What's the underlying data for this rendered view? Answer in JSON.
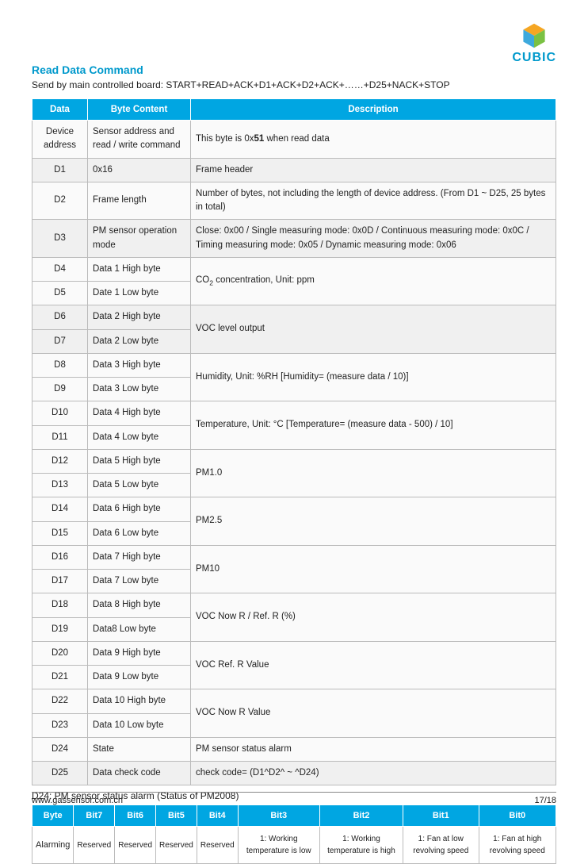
{
  "logo": {
    "text": "CUBIC"
  },
  "title": "Read Data Command",
  "subtitle": "Send by main controlled board: START+READ+ACK+D1+ACK+D2+ACK+……+D25+NACK+STOP",
  "main_table": {
    "headers": [
      "Data",
      "Byte Content",
      "Description"
    ],
    "col_widths": [
      "70px",
      "130px",
      "auto"
    ],
    "rows": [
      {
        "data": "Device address",
        "byte": "Sensor address and read / write command",
        "desc_html": "This byte is 0x<b>51</b> when read data",
        "rowspan": 1,
        "alt": false
      },
      {
        "data": "D1",
        "byte": "0x16",
        "desc": "Frame header",
        "alt": true
      },
      {
        "data": "D2",
        "byte": "Frame length",
        "desc": "Number of bytes, not including the length of device address. (From D1 ~ D25, 25 bytes in total)",
        "alt": false
      },
      {
        "data": "D3",
        "byte": "PM sensor operation mode",
        "desc": "Close: 0x00 / Single measuring mode: 0x0D / Continuous measuring mode: 0x0C / Timing measuring mode: 0x05 / Dynamic measuring mode: 0x06",
        "alt": true
      },
      {
        "data": "D4",
        "byte": "Data 1 High byte",
        "merged_desc_html": "CO<sub>2</sub> concentration, Unit: ppm",
        "merged_first": true,
        "alt": false
      },
      {
        "data": "D5",
        "byte": "Date 1 Low byte",
        "merged_first": false,
        "alt": false
      },
      {
        "data": "D6",
        "byte": "Data 2 High byte",
        "merged_desc": "VOC level output",
        "merged_first": true,
        "alt": true
      },
      {
        "data": "D7",
        "byte": "Data 2 Low byte",
        "merged_first": false,
        "alt": true
      },
      {
        "data": "D8",
        "byte": "Data 3 High byte",
        "merged_desc": "Humidity, Unit: %RH [Humidity= (measure data / 10)]",
        "merged_first": true,
        "alt": false
      },
      {
        "data": "D9",
        "byte": "Data 3 Low byte",
        "merged_first": false,
        "alt": false
      },
      {
        "data": "D10",
        "byte": "Data 4 High byte",
        "merged_desc": "Temperature, Unit: °C [Temperature= (measure data - 500) / 10]",
        "merged_first": true,
        "alt": false
      },
      {
        "data": "D11",
        "byte": "Data 4 Low byte",
        "merged_first": false,
        "alt": false
      },
      {
        "data": "D12",
        "byte": "Data 5 High byte",
        "merged_desc": "PM1.0",
        "merged_first": true,
        "alt": false
      },
      {
        "data": "D13",
        "byte": "Data 5 Low byte",
        "merged_first": false,
        "alt": false
      },
      {
        "data": "D14",
        "byte": "Data 6 High byte",
        "merged_desc": "PM2.5",
        "merged_first": true,
        "alt": false
      },
      {
        "data": "D15",
        "byte": "Data 6 Low byte",
        "merged_first": false,
        "alt": false
      },
      {
        "data": "D16",
        "byte": "Data 7 High byte",
        "merged_desc": "PM10",
        "merged_first": true,
        "alt": false
      },
      {
        "data": "D17",
        "byte": "Data 7 Low byte",
        "merged_first": false,
        "alt": false
      },
      {
        "data": "D18",
        "byte": "Data 8 High byte",
        "merged_desc": "VOC Now R / Ref. R (%)",
        "merged_first": true,
        "alt": false
      },
      {
        "data": "D19",
        "byte": "Data8 Low byte",
        "merged_first": false,
        "alt": false
      },
      {
        "data": "D20",
        "byte": "Data 9 High byte",
        "merged_desc": "VOC Ref. R Value",
        "merged_first": true,
        "alt": false
      },
      {
        "data": "D21",
        "byte": "Data 9 Low byte",
        "merged_first": false,
        "alt": false
      },
      {
        "data": "D22",
        "byte": "Data 10 High byte",
        "merged_desc": "VOC Now R Value",
        "merged_first": true,
        "alt": false
      },
      {
        "data": "D23",
        "byte": "Data 10 Low byte",
        "merged_first": false,
        "alt": false
      },
      {
        "data": "D24",
        "byte": "State",
        "desc": "PM sensor status alarm",
        "alt": false
      },
      {
        "data": "D25",
        "byte": "Data check code",
        "desc": "check code= (D1^D2^ ~ ^D24)",
        "alt": true
      }
    ]
  },
  "caption": "D24: PM sensor status alarm (Status of PM2008)",
  "bits_table": {
    "headers": [
      "Byte",
      "Bit7",
      "Bit6",
      "Bit5",
      "Bit4",
      "Bit3",
      "Bit2",
      "Bit1",
      "Bit0"
    ],
    "row_label": "Alarming",
    "cells": [
      "Reserved",
      "Reserved",
      "Reserved",
      "Reserved",
      "1: Working temperature is low",
      "1: Working temperature is high",
      "1: Fan at low revolving speed",
      "1: Fan at high revolving speed"
    ]
  },
  "footer": {
    "left": "www.gassensor.com.cn",
    "right": "17/18"
  },
  "colors": {
    "header_bg": "#00a6e2",
    "title_color": "#0099cc",
    "border": "#bbb"
  }
}
